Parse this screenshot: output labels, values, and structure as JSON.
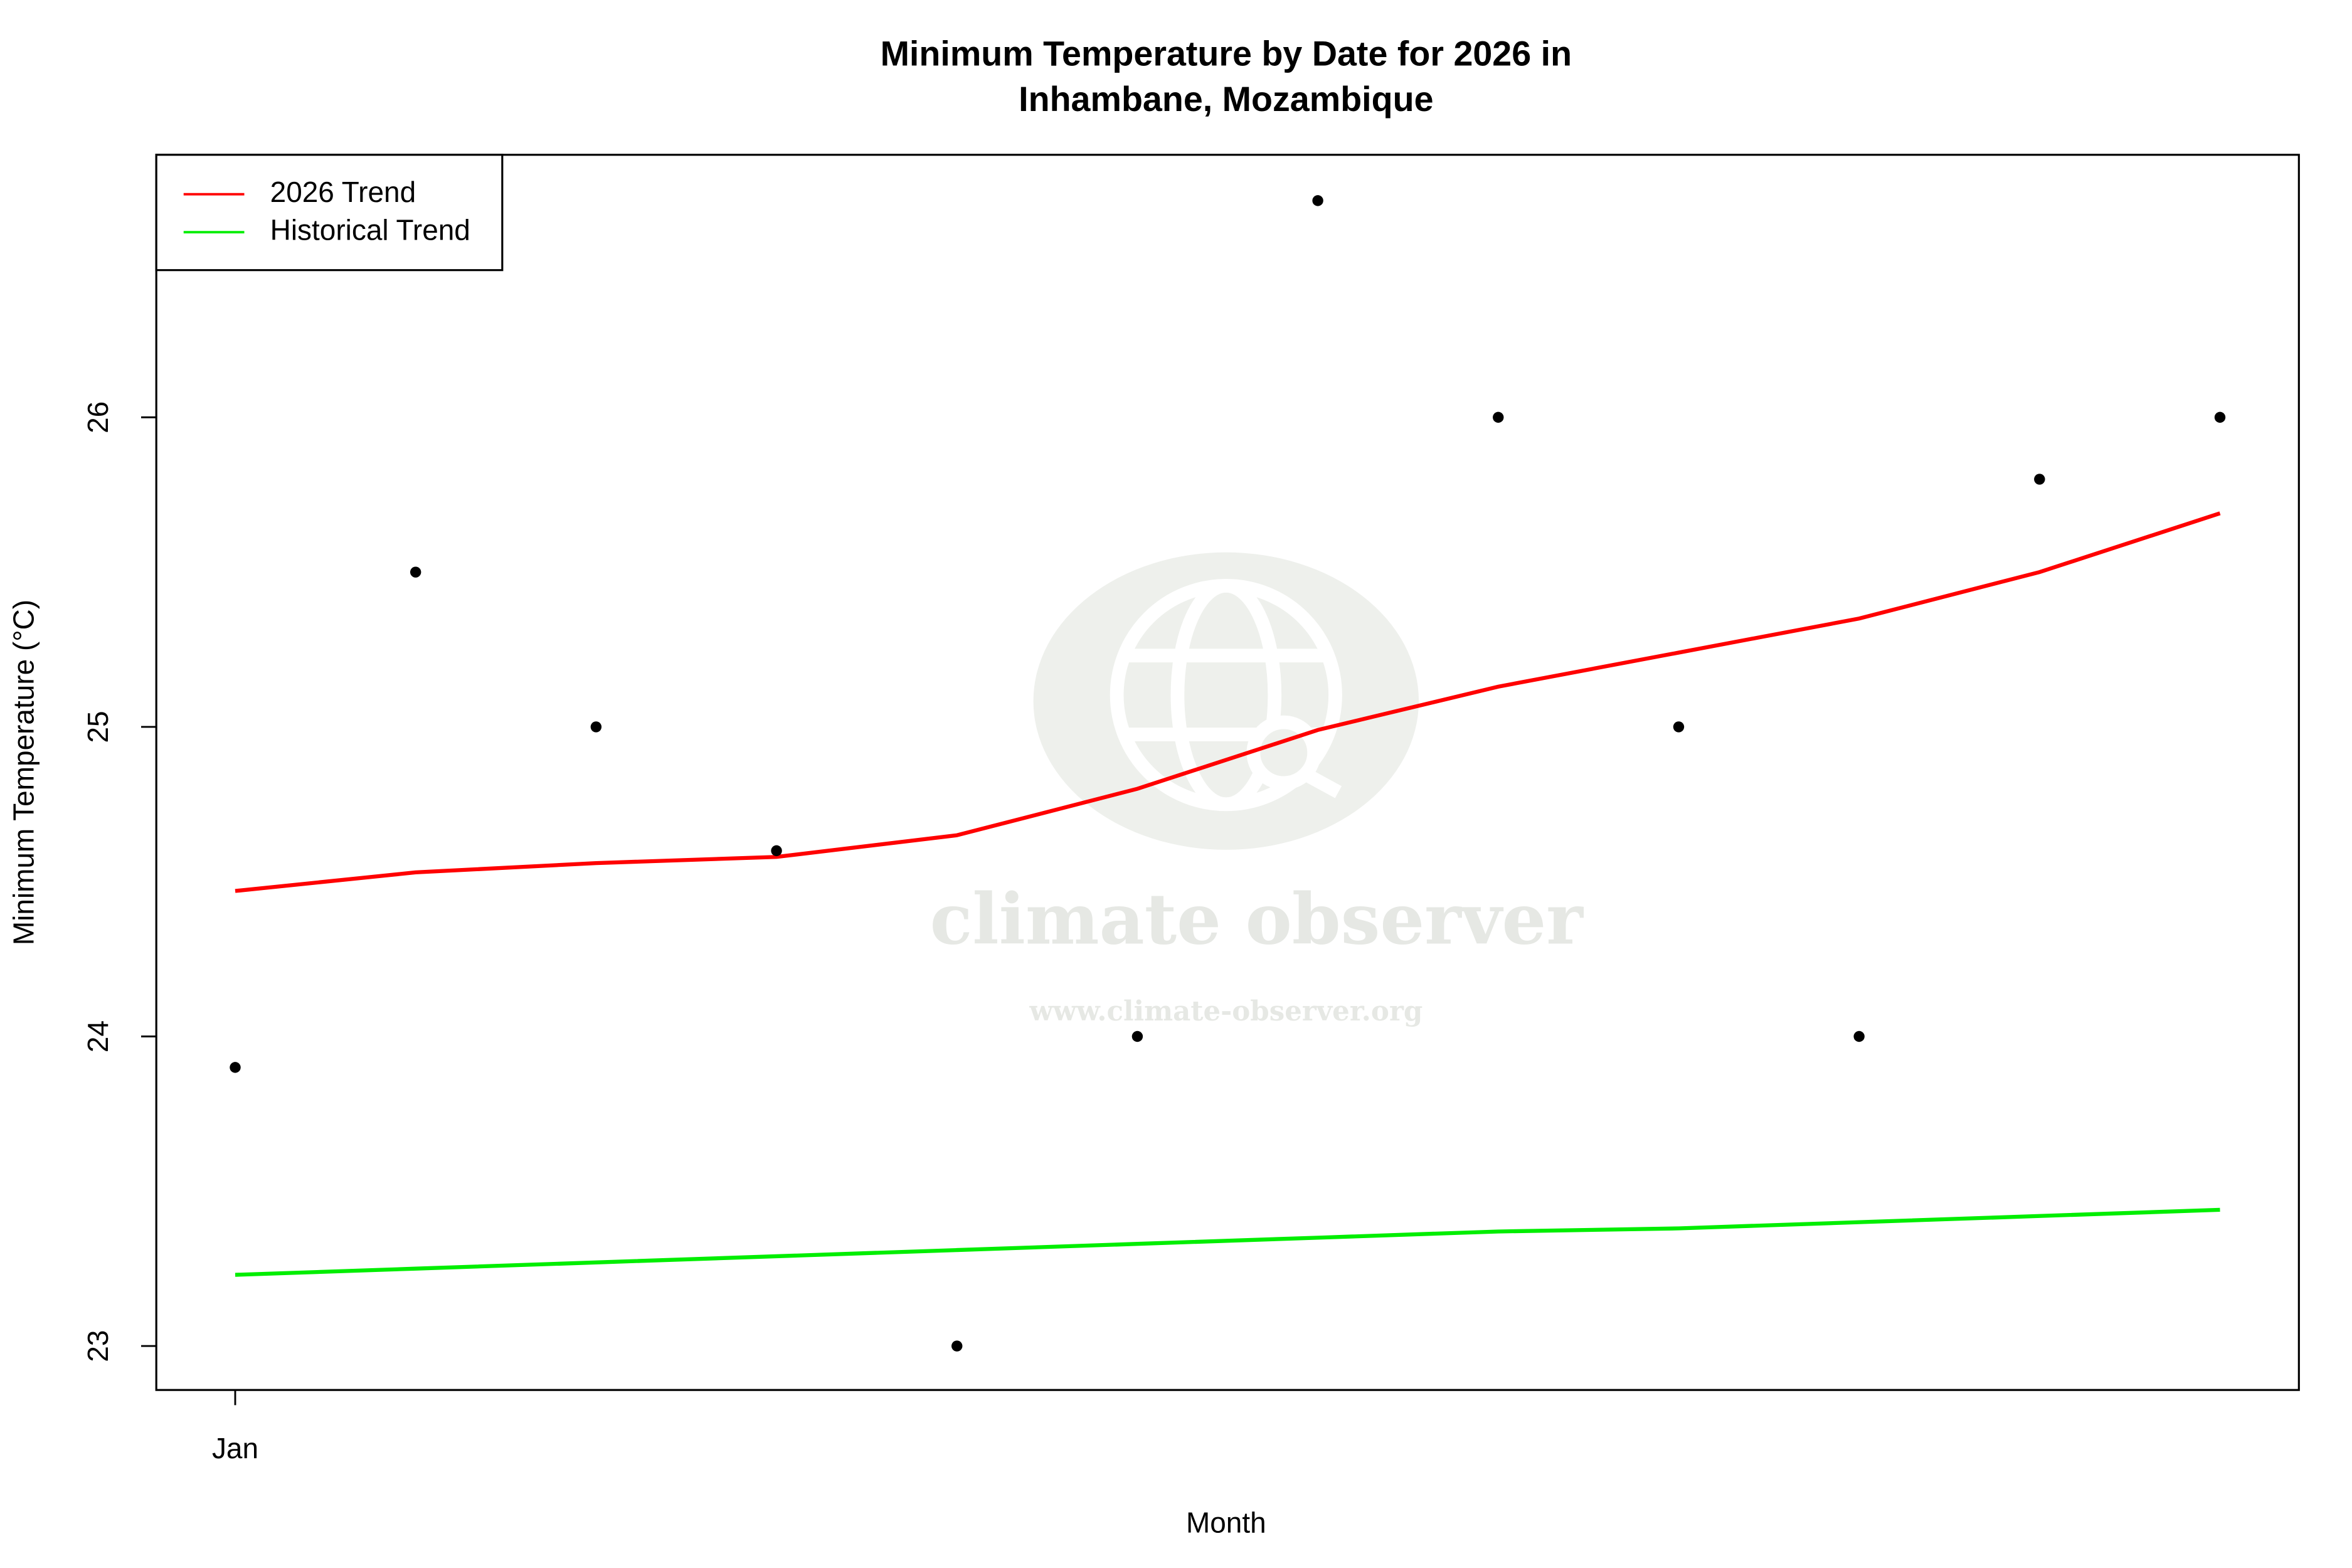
{
  "chart_data": {
    "type": "line",
    "title": "Minimum Temperature by Date for 2026 in",
    "subtitle": "Inhambane, Mozambique",
    "x_label": "Month",
    "y_label": "Minimum Temperature (°C)",
    "categories": [
      "Jan",
      null,
      null,
      null,
      null,
      null,
      null,
      null,
      null,
      null,
      null,
      null
    ],
    "values": [
      23.9,
      25.5,
      25.0,
      24.6,
      23.0,
      24.0,
      26.7,
      26.0,
      25.0,
      24.0,
      25.8,
      26.0
    ],
    "point_color": "#000000",
    "series": [
      {
        "name": "2026 Trend",
        "color": "#ff0000",
        "values": [
          24.47,
          24.53,
          24.56,
          24.58,
          24.65,
          24.8,
          24.99,
          25.13,
          25.24,
          25.35,
          25.5,
          25.69
        ]
      },
      {
        "name": "Historical Trend",
        "color": "#00ee00",
        "values": [
          23.23,
          23.25,
          23.27,
          23.29,
          23.31,
          23.33,
          23.35,
          23.37,
          23.38,
          23.4,
          23.42,
          23.44
        ]
      }
    ],
    "ylim": [
      22.858,
      26.848
    ],
    "yticks": [
      23,
      24,
      25,
      26
    ],
    "legend": "top-left",
    "watermark": {
      "name": "climate observer",
      "url": "www.climate-observer.org"
    }
  }
}
